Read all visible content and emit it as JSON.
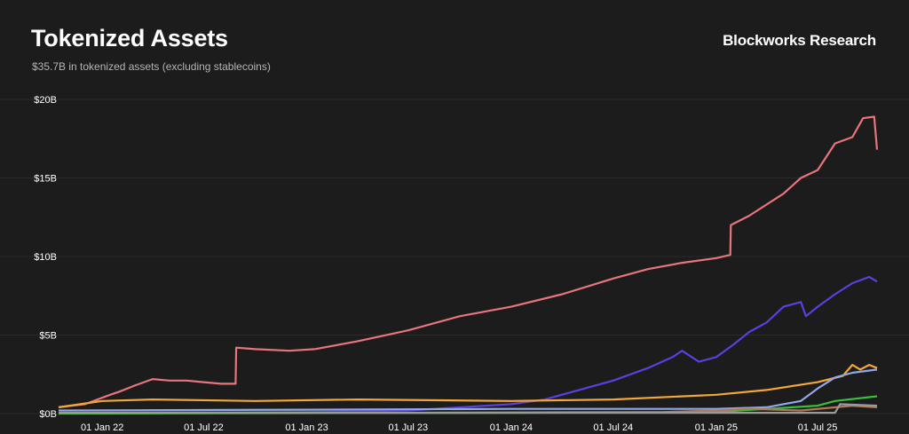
{
  "header": {
    "title": "Tokenized Assets",
    "subtitle": "$35.7B in tokenized assets (excluding stablecoins)",
    "brand": "Blockworks Research"
  },
  "chart_data": {
    "type": "line",
    "title": "Tokenized Assets",
    "subtitle": "$35.7B in tokenized assets (excluding stablecoins)",
    "xlabel": "",
    "ylabel": "",
    "x_ticks": [
      "01 Jan 22",
      "01 Jul 22",
      "01 Jan 23",
      "01 Jul 23",
      "01 Jan 24",
      "01 Jul 24",
      "01 Jan 25",
      "01 Jul 25"
    ],
    "x_tick_dates": [
      "2022-01-01",
      "2022-07-01",
      "2023-01-01",
      "2023-07-01",
      "2024-01-01",
      "2024-07-01",
      "2025-01-01",
      "2025-07-01"
    ],
    "x_range": [
      "2021-10-15",
      "2025-10-15"
    ],
    "y_ticks": [
      "$0B",
      "$5B",
      "$10B",
      "$15B",
      "$20B"
    ],
    "y_tick_values": [
      0,
      5,
      10,
      15,
      20
    ],
    "ylim": [
      0,
      20
    ],
    "y_unit": "B USD",
    "grid": true,
    "series": [
      {
        "color": "#e8747c",
        "points": [
          [
            "2021-10-15",
            0.4
          ],
          [
            "2021-12-01",
            0.6
          ],
          [
            "2022-01-15",
            1.2
          ],
          [
            "2022-02-01",
            1.4
          ],
          [
            "2022-03-01",
            1.8
          ],
          [
            "2022-04-01",
            2.2
          ],
          [
            "2022-05-01",
            2.1
          ],
          [
            "2022-06-01",
            2.1
          ],
          [
            "2022-07-01",
            2.0
          ],
          [
            "2022-08-01",
            1.9
          ],
          [
            "2022-08-27",
            1.9
          ],
          [
            "2022-08-28",
            4.2
          ],
          [
            "2022-10-01",
            4.1
          ],
          [
            "2022-12-01",
            4.0
          ],
          [
            "2023-01-15",
            4.1
          ],
          [
            "2023-04-01",
            4.6
          ],
          [
            "2023-07-01",
            5.3
          ],
          [
            "2023-10-01",
            6.2
          ],
          [
            "2024-01-01",
            6.8
          ],
          [
            "2024-04-01",
            7.6
          ],
          [
            "2024-07-01",
            8.6
          ],
          [
            "2024-09-01",
            9.2
          ],
          [
            "2024-11-01",
            9.6
          ],
          [
            "2025-01-01",
            9.9
          ],
          [
            "2025-01-26",
            10.1
          ],
          [
            "2025-01-27",
            12.0
          ],
          [
            "2025-03-01",
            12.6
          ],
          [
            "2025-05-01",
            14.0
          ],
          [
            "2025-06-01",
            15.0
          ],
          [
            "2025-07-01",
            15.5
          ],
          [
            "2025-08-01",
            17.2
          ],
          [
            "2025-09-01",
            17.6
          ],
          [
            "2025-09-20",
            18.8
          ],
          [
            "2025-10-10",
            18.9
          ],
          [
            "2025-10-15",
            16.8
          ]
        ]
      },
      {
        "color": "#5b3fe0",
        "points": [
          [
            "2021-10-15",
            0.05
          ],
          [
            "2023-01-01",
            0.1
          ],
          [
            "2023-07-01",
            0.2
          ],
          [
            "2024-01-01",
            0.6
          ],
          [
            "2024-03-01",
            0.9
          ],
          [
            "2024-05-01",
            1.5
          ],
          [
            "2024-07-01",
            2.1
          ],
          [
            "2024-09-01",
            2.9
          ],
          [
            "2024-10-15",
            3.6
          ],
          [
            "2024-11-01",
            4.0
          ],
          [
            "2024-12-01",
            3.3
          ],
          [
            "2025-01-01",
            3.6
          ],
          [
            "2025-02-01",
            4.4
          ],
          [
            "2025-03-01",
            5.2
          ],
          [
            "2025-04-01",
            5.8
          ],
          [
            "2025-05-01",
            6.8
          ],
          [
            "2025-06-01",
            7.1
          ],
          [
            "2025-06-10",
            6.2
          ],
          [
            "2025-07-01",
            6.8
          ],
          [
            "2025-08-01",
            7.6
          ],
          [
            "2025-09-01",
            8.3
          ],
          [
            "2025-10-01",
            8.7
          ],
          [
            "2025-10-15",
            8.4
          ]
        ]
      },
      {
        "color": "#f2a73a",
        "points": [
          [
            "2021-10-15",
            0.4
          ],
          [
            "2022-01-01",
            0.8
          ],
          [
            "2022-04-01",
            0.9
          ],
          [
            "2022-10-01",
            0.8
          ],
          [
            "2023-04-01",
            0.9
          ],
          [
            "2024-01-01",
            0.8
          ],
          [
            "2024-07-01",
            0.9
          ],
          [
            "2025-01-01",
            1.2
          ],
          [
            "2025-04-01",
            1.5
          ],
          [
            "2025-07-01",
            2.0
          ],
          [
            "2025-08-15",
            2.4
          ],
          [
            "2025-09-01",
            3.1
          ],
          [
            "2025-09-15",
            2.8
          ],
          [
            "2025-10-01",
            3.1
          ],
          [
            "2025-10-15",
            2.9
          ]
        ]
      },
      {
        "color": "#8fa8e8",
        "points": [
          [
            "2021-10-15",
            0.2
          ],
          [
            "2023-01-01",
            0.25
          ],
          [
            "2024-01-01",
            0.3
          ],
          [
            "2025-01-01",
            0.3
          ],
          [
            "2025-04-01",
            0.4
          ],
          [
            "2025-06-01",
            0.8
          ],
          [
            "2025-07-01",
            1.6
          ],
          [
            "2025-08-01",
            2.3
          ],
          [
            "2025-09-01",
            2.6
          ],
          [
            "2025-10-15",
            2.8
          ]
        ]
      },
      {
        "color": "#36c13c",
        "points": [
          [
            "2021-10-15",
            0.0
          ],
          [
            "2024-01-01",
            0.05
          ],
          [
            "2025-01-01",
            0.1
          ],
          [
            "2025-04-01",
            0.3
          ],
          [
            "2025-07-01",
            0.5
          ],
          [
            "2025-08-01",
            0.8
          ],
          [
            "2025-10-15",
            1.1
          ]
        ]
      },
      {
        "color": "#b07a5a",
        "points": [
          [
            "2021-10-15",
            0.05
          ],
          [
            "2023-06-01",
            0.05
          ],
          [
            "2024-10-01",
            0.1
          ],
          [
            "2025-01-01",
            0.2
          ],
          [
            "2025-03-01",
            0.3
          ],
          [
            "2025-06-01",
            0.2
          ],
          [
            "2025-09-01",
            0.5
          ],
          [
            "2025-10-15",
            0.4
          ]
        ]
      },
      {
        "color": "#9a9a9a",
        "points": [
          [
            "2021-10-15",
            0.05
          ],
          [
            "2025-08-01",
            0.05
          ],
          [
            "2025-08-10",
            0.6
          ],
          [
            "2025-10-15",
            0.5
          ]
        ]
      }
    ]
  }
}
